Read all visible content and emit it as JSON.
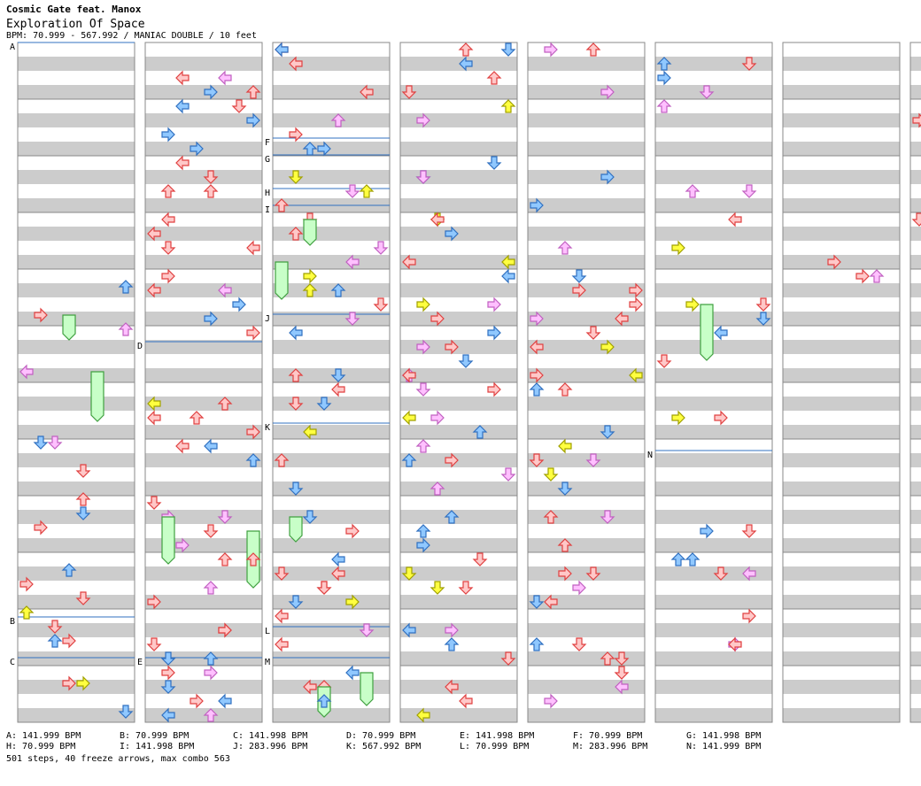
{
  "header": {
    "title": "Cosmic Gate feat. Manox",
    "subtitle": "Exploration Of Space",
    "meta": "BPM: 70.999 - 567.992 / MANIAC DOUBLE / 10 feet"
  },
  "bpm_legend": [
    "A: 141.999 BPM",
    "B: 70.999 BPM",
    "C: 141.998 BPM",
    "D: 70.999 BPM",
    "E: 141.998 BPM",
    "F: 70.999 BPM",
    "G: 141.998 BPM",
    "H: 70.999 BPM",
    "I: 141.998 BPM",
    "J: 283.996 BPM",
    "K: 567.992 BPM",
    "L: 70.999 BPM",
    "M: 283.996 BPM",
    "N: 141.999 BPM"
  ],
  "footer": "501 steps, 40 freeze arrows, max combo 563",
  "columns": 8,
  "markers": [
    {
      "label": "A",
      "col": 0,
      "pos": 0.0
    },
    {
      "label": "B",
      "col": 0,
      "pos": 0.845
    },
    {
      "label": "C",
      "col": 0,
      "pos": 0.905
    },
    {
      "label": "D",
      "col": 1,
      "pos": 0.44
    },
    {
      "label": "E",
      "col": 1,
      "pos": 0.905
    },
    {
      "label": "F",
      "col": 2,
      "pos": 0.14
    },
    {
      "label": "G",
      "col": 2,
      "pos": 0.165
    },
    {
      "label": "H",
      "col": 2,
      "pos": 0.215
    },
    {
      "label": "I",
      "col": 2,
      "pos": 0.24
    },
    {
      "label": "J",
      "col": 2,
      "pos": 0.4
    },
    {
      "label": "K",
      "col": 2,
      "pos": 0.56
    },
    {
      "label": "L",
      "col": 2,
      "pos": 0.86
    },
    {
      "label": "M",
      "col": 2,
      "pos": 0.905
    },
    {
      "label": "N",
      "col": 5,
      "pos": 0.6
    }
  ],
  "colors": {
    "red_fill": "#ffc8c8",
    "red_stroke": "#e04040",
    "blue_fill": "#90c8ff",
    "blue_stroke": "#3070c0",
    "pink_fill": "#ffc0ff",
    "pink_stroke": "#c060c0",
    "yellow_fill": "#ffff40",
    "yellow_stroke": "#a0a000",
    "freeze_fill": "#c8ffc8",
    "freeze_stroke": "#40a040",
    "stripe": "#cccccc",
    "marker_line": "#3070c0"
  }
}
